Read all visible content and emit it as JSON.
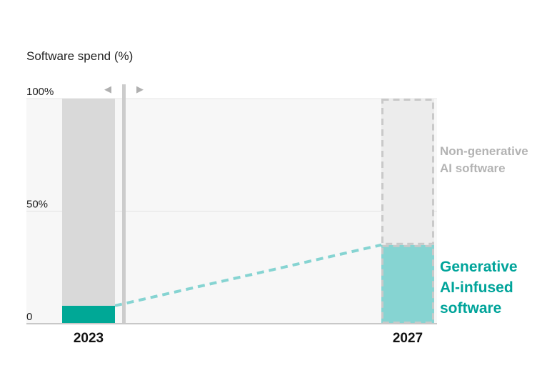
{
  "chart_data": {
    "type": "bar",
    "stacked": true,
    "ylabel": "Software spend (%)",
    "ylim": [
      0,
      100
    ],
    "yticks": [
      {
        "value": 0,
        "label": "0"
      },
      {
        "value": 50,
        "label": "50%"
      },
      {
        "value": 100,
        "label": "100%"
      }
    ],
    "categories": [
      "2023",
      "2027"
    ],
    "series": [
      {
        "name": "Generative AI-infused software",
        "label_lines": [
          "Generative",
          "AI-infused",
          "software"
        ],
        "values": [
          8,
          35
        ],
        "colors": [
          "#00a896",
          "#86d4d2"
        ]
      },
      {
        "name": "Non-generative AI software",
        "label_lines": [
          "Non-generative",
          "AI software"
        ],
        "values": [
          92,
          65
        ],
        "colors": [
          "#d9d9d9",
          "#ececec"
        ]
      }
    ],
    "forecast_category": "2027",
    "connector_color": "#86d4d2",
    "grid": true,
    "slider_arrows": [
      "◀",
      "▶"
    ],
    "colors": {
      "plot_bg": "#f7f7f7",
      "gridline": "#e4e4e4",
      "axis": "#c8c8c8",
      "dashed_border": "#c9c9c9",
      "label_gray": "#b3b3b3",
      "label_teal": "#00a49a"
    }
  }
}
